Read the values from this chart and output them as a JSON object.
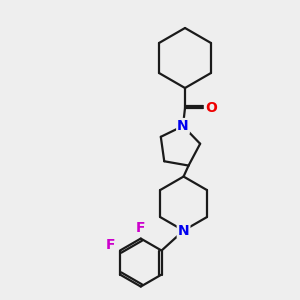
{
  "bg_color": "#eeeeee",
  "bond_color": "#1a1a1a",
  "N_color": "#0000ee",
  "O_color": "#ee0000",
  "F_color": "#cc00cc",
  "line_width": 1.6,
  "font_size_atom": 10,
  "fig_size": [
    3.0,
    3.0
  ],
  "dpi": 100,
  "xlim": [
    0,
    300
  ],
  "ylim": [
    0,
    300
  ]
}
